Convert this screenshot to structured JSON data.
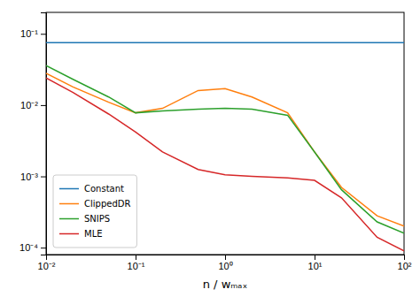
{
  "chart_data": {
    "type": "line",
    "xlabel": "n / wₘₐₓ",
    "x": [
      0.01,
      0.02,
      0.05,
      0.1,
      0.2,
      0.5,
      1.0,
      2.0,
      5.0,
      10.0,
      20.0,
      50.0,
      100.0
    ],
    "series": [
      {
        "name": "Constant",
        "color": "#1f77b4",
        "values": [
          0.075,
          0.075,
          0.075,
          0.075,
          0.075,
          0.075,
          0.075,
          0.075,
          0.075,
          0.075,
          0.075,
          0.075,
          0.075
        ]
      },
      {
        "name": "ClippedDR",
        "color": "#ff7f0e",
        "values": [
          0.028,
          0.018,
          0.011,
          0.0078,
          0.009,
          0.016,
          0.017,
          0.013,
          0.0078,
          0.0022,
          0.0007,
          0.00028,
          0.0002
        ]
      },
      {
        "name": "SNIPS",
        "color": "#2ca02c",
        "values": [
          0.036,
          0.023,
          0.013,
          0.0078,
          0.0083,
          0.0088,
          0.009,
          0.0088,
          0.0072,
          0.0022,
          0.00065,
          0.00023,
          0.00016
        ]
      },
      {
        "name": "MLE",
        "color": "#d62728",
        "values": [
          0.024,
          0.015,
          0.0075,
          0.0042,
          0.0022,
          0.00125,
          0.00105,
          0.001,
          0.00095,
          0.00088,
          0.0005,
          0.00014,
          9e-05
        ]
      }
    ],
    "xlim": [
      0.01,
      100
    ],
    "ylim": [
      8e-05,
      0.2
    ],
    "xticks": [
      {
        "value": 0.01,
        "label": "10⁻²"
      },
      {
        "value": 0.1,
        "label": "10⁻¹"
      },
      {
        "value": 1,
        "label": "10⁰"
      },
      {
        "value": 10,
        "label": "10¹"
      },
      {
        "value": 100,
        "label": "10²"
      }
    ],
    "yticks": [
      {
        "value": 0.0001,
        "label": "10⁻⁴"
      },
      {
        "value": 0.001,
        "label": "10⁻³"
      },
      {
        "value": 0.01,
        "label": "10⁻²"
      },
      {
        "value": 0.1,
        "label": "10⁻¹"
      }
    ],
    "log": true,
    "grid": false,
    "legend": "lower left"
  }
}
